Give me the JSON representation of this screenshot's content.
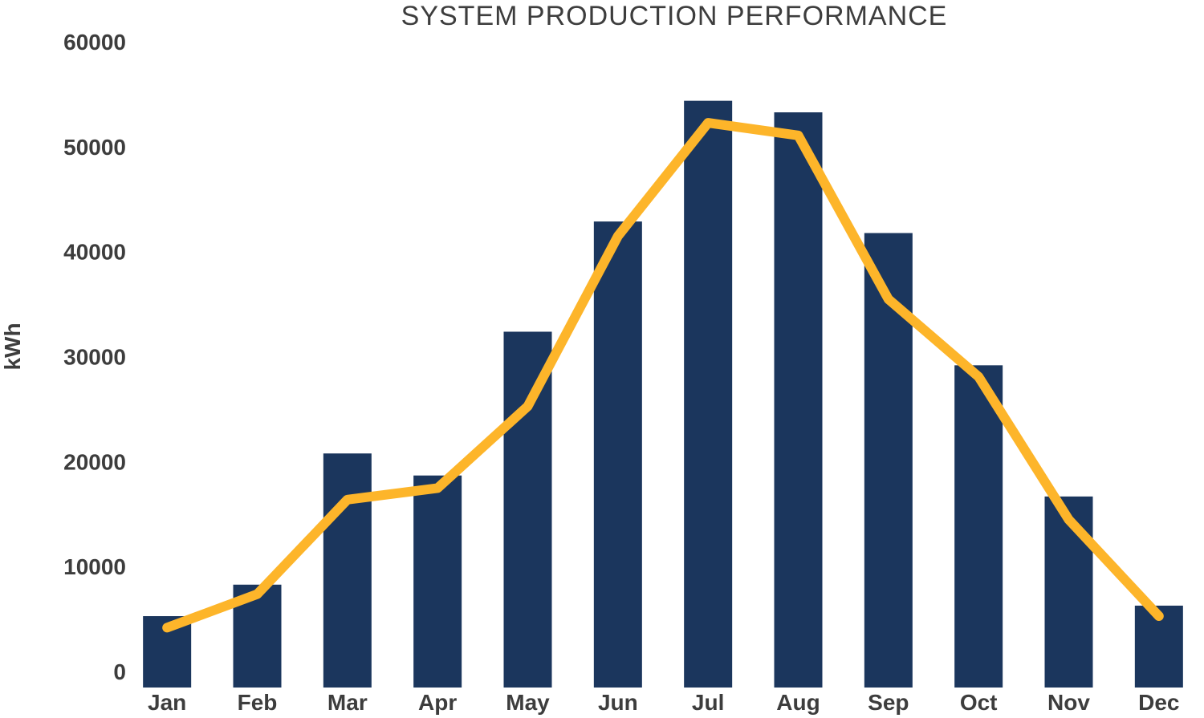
{
  "chart_data": {
    "type": "bar",
    "title": "SYSTEM PRODUCTION PERFORMANCE",
    "xlabel": "",
    "ylabel": "kWh",
    "ylim": [
      0,
      60000
    ],
    "yticks": [
      "0",
      "10000",
      "20000",
      "30000",
      "40000",
      "50000",
      "60000"
    ],
    "categories": [
      "Jan",
      "Feb",
      "Mar",
      "Apr",
      "May",
      "Jun",
      "Jul",
      "Aug",
      "Sep",
      "Oct",
      "Nov",
      "Dec"
    ],
    "grid": false,
    "legend": "none",
    "series": [
      {
        "type": "bar",
        "color": "#1b365d",
        "values": [
          6800,
          9800,
          22300,
          20200,
          33900,
          44400,
          55900,
          54800,
          43300,
          30700,
          18200,
          7800
        ]
      },
      {
        "type": "line",
        "color": "#fdb52a",
        "values": [
          5700,
          8900,
          17900,
          19000,
          26800,
          43000,
          53800,
          52600,
          37000,
          29600,
          16000,
          6800
        ]
      }
    ]
  }
}
